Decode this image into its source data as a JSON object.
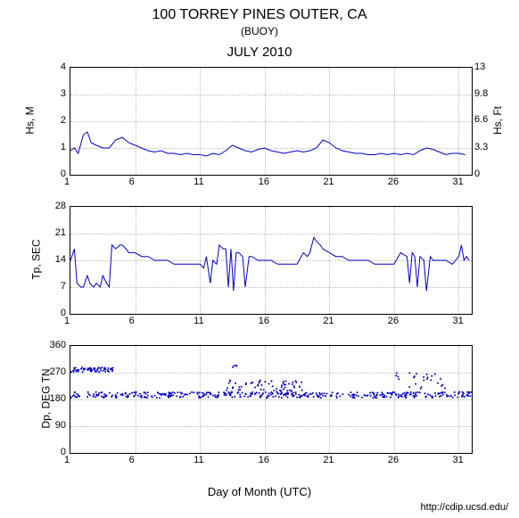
{
  "title": "100 TORREY PINES OUTER, CA",
  "subtitle": "(BUOY)",
  "month_title": "JULY 2010",
  "xlabel": "Day of Month (UTC)",
  "footer_url": "http://cdip.ucsd.edu/",
  "colors": {
    "line": "#0000cc",
    "scatter": "#0000cc",
    "grid": "#bbbbbb",
    "border": "#000000",
    "background": "#ffffff",
    "text": "#000000"
  },
  "x_axis": {
    "min": 1,
    "max": 32,
    "ticks": [
      1,
      6,
      11,
      16,
      21,
      26,
      31
    ]
  },
  "panels": [
    {
      "id": "hs",
      "type": "line",
      "ylabel_left": "Hs, M",
      "ylabel_right": "Hs, Ft",
      "ylim_left": [
        0,
        4
      ],
      "yticks_left": [
        0,
        1,
        2,
        3,
        4
      ],
      "ylim_right": [
        0,
        13
      ],
      "yticks_right": [
        0,
        3.3,
        6.6,
        9.8,
        13
      ],
      "line_width": 1,
      "data": [
        [
          1,
          0.9
        ],
        [
          1.3,
          1.0
        ],
        [
          1.6,
          0.8
        ],
        [
          2,
          1.5
        ],
        [
          2.3,
          1.6
        ],
        [
          2.6,
          1.2
        ],
        [
          3,
          1.1
        ],
        [
          3.5,
          1.0
        ],
        [
          4,
          1.0
        ],
        [
          4.5,
          1.3
        ],
        [
          5,
          1.4
        ],
        [
          5.5,
          1.2
        ],
        [
          6,
          1.1
        ],
        [
          6.5,
          1.0
        ],
        [
          7,
          0.9
        ],
        [
          7.5,
          0.85
        ],
        [
          8,
          0.9
        ],
        [
          8.5,
          0.8
        ],
        [
          9,
          0.8
        ],
        [
          9.5,
          0.75
        ],
        [
          10,
          0.8
        ],
        [
          10.5,
          0.75
        ],
        [
          11,
          0.75
        ],
        [
          11.5,
          0.7
        ],
        [
          12,
          0.8
        ],
        [
          12.5,
          0.75
        ],
        [
          13,
          0.9
        ],
        [
          13.5,
          1.1
        ],
        [
          14,
          1.0
        ],
        [
          14.5,
          0.9
        ],
        [
          15,
          0.85
        ],
        [
          15.5,
          0.95
        ],
        [
          16,
          1.0
        ],
        [
          16.5,
          0.9
        ],
        [
          17,
          0.85
        ],
        [
          17.5,
          0.8
        ],
        [
          18,
          0.85
        ],
        [
          18.5,
          0.9
        ],
        [
          19,
          0.85
        ],
        [
          19.5,
          0.9
        ],
        [
          20,
          1.0
        ],
        [
          20.5,
          1.3
        ],
        [
          21,
          1.2
        ],
        [
          21.5,
          1.0
        ],
        [
          22,
          0.9
        ],
        [
          22.5,
          0.85
        ],
        [
          23,
          0.8
        ],
        [
          23.5,
          0.8
        ],
        [
          24,
          0.75
        ],
        [
          24.5,
          0.75
        ],
        [
          25,
          0.8
        ],
        [
          25.5,
          0.75
        ],
        [
          26,
          0.8
        ],
        [
          26.5,
          0.75
        ],
        [
          27,
          0.8
        ],
        [
          27.5,
          0.75
        ],
        [
          28,
          0.9
        ],
        [
          28.5,
          1.0
        ],
        [
          29,
          0.95
        ],
        [
          29.5,
          0.85
        ],
        [
          30,
          0.75
        ],
        [
          30.5,
          0.8
        ],
        [
          31,
          0.8
        ],
        [
          31.5,
          0.75
        ]
      ]
    },
    {
      "id": "tp",
      "type": "line",
      "ylabel_left": "Tp, SEC",
      "ylim_left": [
        0,
        28
      ],
      "yticks_left": [
        0,
        7,
        14,
        21,
        28
      ],
      "line_width": 1,
      "data": [
        [
          1,
          14
        ],
        [
          1.3,
          17
        ],
        [
          1.5,
          8
        ],
        [
          1.8,
          7
        ],
        [
          2,
          7
        ],
        [
          2.3,
          10
        ],
        [
          2.5,
          8
        ],
        [
          2.8,
          7
        ],
        [
          3,
          8
        ],
        [
          3.3,
          7
        ],
        [
          3.5,
          10
        ],
        [
          3.8,
          8
        ],
        [
          4,
          7
        ],
        [
          4.2,
          18
        ],
        [
          4.5,
          17
        ],
        [
          4.8,
          18
        ],
        [
          5,
          18
        ],
        [
          5.3,
          17
        ],
        [
          5.5,
          16
        ],
        [
          6,
          16
        ],
        [
          6.5,
          15
        ],
        [
          7,
          15
        ],
        [
          7.5,
          14
        ],
        [
          8,
          14
        ],
        [
          8.5,
          14
        ],
        [
          9,
          13
        ],
        [
          9.5,
          13
        ],
        [
          10,
          13
        ],
        [
          10.5,
          13
        ],
        [
          11,
          13
        ],
        [
          11.3,
          12
        ],
        [
          11.5,
          15
        ],
        [
          11.8,
          8
        ],
        [
          12,
          14
        ],
        [
          12.3,
          13
        ],
        [
          12.5,
          18
        ],
        [
          12.8,
          17
        ],
        [
          13,
          17
        ],
        [
          13.2,
          7
        ],
        [
          13.4,
          17
        ],
        [
          13.6,
          6
        ],
        [
          13.8,
          16
        ],
        [
          14,
          16
        ],
        [
          14.3,
          15
        ],
        [
          14.5,
          7
        ],
        [
          14.8,
          15
        ],
        [
          15,
          15
        ],
        [
          15.5,
          14
        ],
        [
          16,
          14
        ],
        [
          16.5,
          14
        ],
        [
          17,
          13
        ],
        [
          17.5,
          13
        ],
        [
          18,
          13
        ],
        [
          18.5,
          13
        ],
        [
          19,
          16
        ],
        [
          19.3,
          15
        ],
        [
          19.5,
          16
        ],
        [
          19.8,
          20
        ],
        [
          20,
          19
        ],
        [
          20.3,
          18
        ],
        [
          20.5,
          17
        ],
        [
          21,
          16
        ],
        [
          21.5,
          15
        ],
        [
          22,
          15
        ],
        [
          22.5,
          14
        ],
        [
          23,
          14
        ],
        [
          23.5,
          14
        ],
        [
          24,
          14
        ],
        [
          24.5,
          13
        ],
        [
          25,
          13
        ],
        [
          25.5,
          13
        ],
        [
          26,
          13
        ],
        [
          26.5,
          16
        ],
        [
          27,
          15
        ],
        [
          27.2,
          8
        ],
        [
          27.4,
          16
        ],
        [
          27.6,
          15
        ],
        [
          27.8,
          7
        ],
        [
          28,
          15
        ],
        [
          28.3,
          14
        ],
        [
          28.5,
          6
        ],
        [
          28.8,
          15
        ],
        [
          29,
          14
        ],
        [
          29.5,
          14
        ],
        [
          30,
          14
        ],
        [
          30.5,
          13
        ],
        [
          31,
          15
        ],
        [
          31.2,
          18
        ],
        [
          31.4,
          14
        ],
        [
          31.6,
          15
        ],
        [
          31.8,
          14
        ]
      ]
    },
    {
      "id": "dp",
      "type": "scatter",
      "ylabel_left": "Dp, DEG TN",
      "ylim_left": [
        0,
        360
      ],
      "yticks_left": [
        0,
        90,
        180,
        270,
        360
      ],
      "marker_size": 2,
      "data_bands": [
        {
          "x_range": [
            1,
            4.3
          ],
          "y_center": 280,
          "y_spread": 8,
          "density": 60
        },
        {
          "x_range": [
            1,
            32
          ],
          "y_center": 195,
          "y_spread": 10,
          "density": 400
        },
        {
          "x_range": [
            13,
            19
          ],
          "y_center": 220,
          "y_spread": 25,
          "density": 80
        },
        {
          "x_range": [
            26,
            30
          ],
          "y_center": 240,
          "y_spread": 30,
          "density": 25
        },
        {
          "x_range": [
            13.5,
            14
          ],
          "y_center": 290,
          "y_spread": 5,
          "density": 4
        }
      ]
    }
  ]
}
